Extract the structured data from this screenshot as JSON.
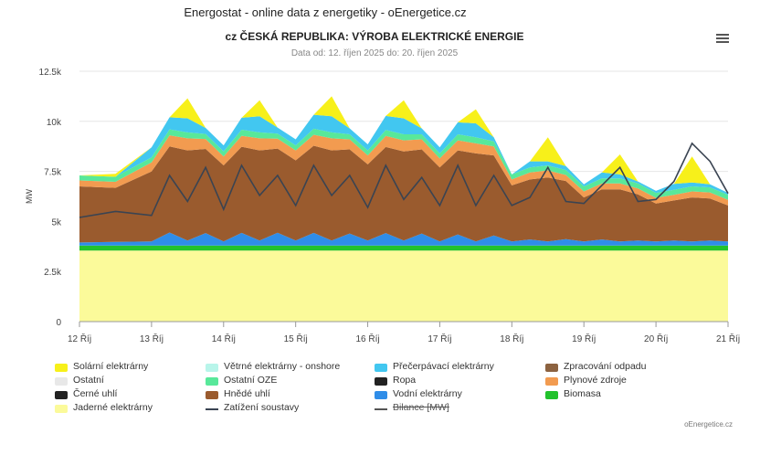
{
  "header": {
    "site_title": "Energostat - online data z energetiky - oEnergetice.cz",
    "chart_title": "cz ČESKÁ REPUBLIKA: VÝROBA ELEKTRICKÉ ENERGIE",
    "subtitle": "Data od: 12. říjen 2025 do: 20. říjen 2025"
  },
  "credits": "oEnergetice.cz",
  "legend": [
    {
      "label": "Solární elektrárny",
      "color": "#f7f01a",
      "kind": "area"
    },
    {
      "label": "Větrné elektrárny - onshore",
      "color": "#b8f5ea",
      "kind": "area"
    },
    {
      "label": "Přečerpávací elektrárny",
      "color": "#42c7f0",
      "kind": "area"
    },
    {
      "label": "Zpracování odpadu",
      "color": "#8c6240",
      "kind": "area"
    },
    {
      "label": "Ostatní",
      "color": "#e8e8e8",
      "kind": "area"
    },
    {
      "label": "Ostatní OZE",
      "color": "#58e89a",
      "kind": "area"
    },
    {
      "label": "Ropa",
      "color": "#222222",
      "kind": "area"
    },
    {
      "label": "Plynové zdroje",
      "color": "#f29b50",
      "kind": "area"
    },
    {
      "label": "Černé uhlí",
      "color": "#222222",
      "kind": "area"
    },
    {
      "label": "Hnědé uhlí",
      "color": "#9a5b2e",
      "kind": "area"
    },
    {
      "label": "Vodní elektrárny",
      "color": "#2f8de8",
      "kind": "area"
    },
    {
      "label": "Biomasa",
      "color": "#22c22c",
      "kind": "area"
    },
    {
      "label": "Jaderné elektrárny",
      "color": "#fbfa9a",
      "kind": "area"
    },
    {
      "label": "Zatížení soustavy",
      "color": "#3a4452",
      "kind": "line"
    },
    {
      "label": "Bilance [MW]",
      "color": "#555555",
      "kind": "line",
      "disabled": true
    }
  ],
  "chart_data": {
    "type": "area",
    "ylabel": "MW",
    "ylim": [
      0,
      12500
    ],
    "yticks": [
      0,
      2500,
      5000,
      7500,
      10000,
      12500
    ],
    "ytick_labels": [
      "0",
      "2.5k",
      "5k",
      "7.5k",
      "10k",
      "12.5k"
    ],
    "xtick_labels": [
      "12 Říj",
      "13 Říj",
      "14 Říj",
      "15 Říj",
      "16 Říj",
      "17 Říj",
      "18 Říj",
      "19 Říj",
      "20 Říj",
      "21 Říj"
    ],
    "x_unit": "days since 12 Říj 00:00",
    "x": [
      0,
      0.5,
      1,
      1.25,
      1.5,
      1.75,
      2,
      2.25,
      2.5,
      2.75,
      3,
      3.25,
      3.5,
      3.75,
      4,
      4.25,
      4.5,
      4.75,
      5,
      5.25,
      5.5,
      5.75,
      6,
      6.25,
      6.5,
      6.75,
      7,
      7.25,
      7.5,
      7.75,
      8,
      8.25,
      8.5,
      8.75,
      9
    ],
    "series": [
      {
        "name": "Jaderné elektrárny",
        "values": [
          3550,
          3550,
          3550,
          3550,
          3550,
          3550,
          3550,
          3550,
          3550,
          3550,
          3550,
          3550,
          3550,
          3550,
          3550,
          3550,
          3550,
          3550,
          3550,
          3550,
          3550,
          3550,
          3550,
          3550,
          3550,
          3550,
          3550,
          3550,
          3550,
          3550,
          3550,
          3550,
          3550,
          3550,
          3550
        ]
      },
      {
        "name": "Biomasa",
        "values": [
          250,
          250,
          250,
          250,
          250,
          250,
          250,
          250,
          250,
          250,
          250,
          250,
          250,
          250,
          250,
          250,
          250,
          250,
          250,
          250,
          250,
          250,
          250,
          250,
          250,
          250,
          250,
          250,
          250,
          250,
          250,
          250,
          250,
          250,
          250
        ]
      },
      {
        "name": "Vodní elektrárny",
        "values": [
          150,
          180,
          200,
          650,
          250,
          620,
          200,
          630,
          250,
          640,
          250,
          630,
          250,
          600,
          250,
          620,
          250,
          600,
          200,
          550,
          200,
          500,
          200,
          300,
          200,
          320,
          200,
          300,
          200,
          250,
          200,
          250,
          200,
          250,
          200
        ]
      },
      {
        "name": "Hnědé uhlí",
        "values": [
          2800,
          2700,
          3500,
          4300,
          4500,
          4200,
          3800,
          4300,
          4500,
          4200,
          4000,
          4350,
          4500,
          4200,
          3800,
          4300,
          4450,
          4200,
          3700,
          4200,
          4400,
          4000,
          2800,
          3000,
          3200,
          2900,
          2200,
          2500,
          2600,
          2300,
          1900,
          2000,
          2200,
          2100,
          1800
        ]
      },
      {
        "name": "Plynové zdroje",
        "values": [
          300,
          300,
          450,
          550,
          600,
          500,
          450,
          550,
          600,
          500,
          500,
          550,
          600,
          500,
          450,
          550,
          550,
          500,
          450,
          500,
          500,
          450,
          300,
          350,
          350,
          300,
          300,
          300,
          300,
          300,
          280,
          280,
          300,
          300,
          280
        ]
      },
      {
        "name": "Ostatní OZE",
        "values": [
          250,
          250,
          250,
          300,
          300,
          250,
          250,
          300,
          300,
          250,
          250,
          300,
          300,
          250,
          250,
          300,
          300,
          250,
          250,
          300,
          300,
          250,
          250,
          250,
          250,
          250,
          250,
          250,
          250,
          250,
          250,
          250,
          250,
          250,
          250
        ]
      },
      {
        "name": "Přečerpávací elektrárny",
        "values": [
          0,
          0,
          500,
          600,
          700,
          300,
          300,
          600,
          800,
          300,
          300,
          700,
          800,
          300,
          300,
          700,
          800,
          300,
          300,
          600,
          700,
          200,
          0,
          300,
          200,
          200,
          100,
          300,
          200,
          100,
          100,
          300,
          200,
          150,
          100
        ]
      },
      {
        "name": "Solární elektrárny",
        "values": [
          0,
          150,
          0,
          0,
          1000,
          0,
          0,
          0,
          800,
          0,
          0,
          0,
          1000,
          0,
          0,
          0,
          900,
          0,
          0,
          0,
          700,
          0,
          0,
          0,
          1200,
          0,
          0,
          0,
          1000,
          0,
          0,
          0,
          1300,
          0,
          0
        ]
      }
    ],
    "load_series": {
      "name": "Zatížení soustavy",
      "values": [
        5200,
        5500,
        5300,
        7300,
        6000,
        7700,
        5600,
        7800,
        6300,
        7300,
        5800,
        7800,
        6300,
        7300,
        5700,
        7800,
        6100,
        7200,
        5800,
        7800,
        5800,
        7300,
        5800,
        6200,
        7700,
        6000,
        5900,
        6800,
        7700,
        6000,
        6100,
        7000,
        8900,
        8000,
        6400
      ]
    }
  }
}
